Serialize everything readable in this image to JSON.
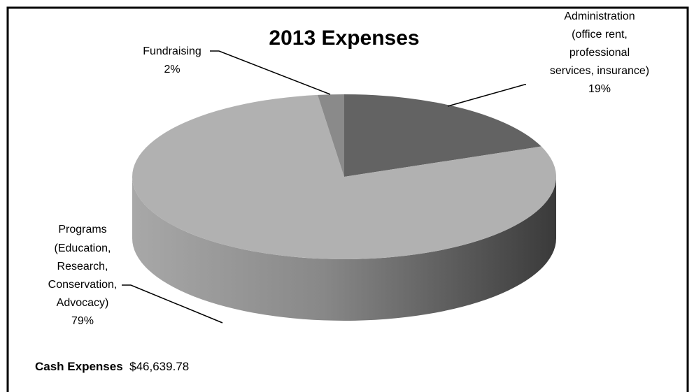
{
  "chart_data": {
    "type": "pie",
    "style": "3d",
    "title": "2013 Expenses",
    "slices": [
      {
        "name": "Administration",
        "label_lines": [
          "Administration",
          "(office rent,",
          "professional",
          "services, insurance)"
        ],
        "value": 19,
        "value_label": "19%",
        "color": "#636363"
      },
      {
        "name": "Programs",
        "label_lines": [
          "Programs",
          "(Education,",
          "Research,",
          "Conservation,",
          "Advocacy)"
        ],
        "value": 79,
        "value_label": "79%",
        "color": "#b1b1b1"
      },
      {
        "name": "Fundraising",
        "label_lines": [
          "Fundraising"
        ],
        "value": 2,
        "value_label": "2%",
        "color": "#8a8a8a"
      }
    ]
  },
  "footer": {
    "label": "Cash Expenses",
    "amount": "$46,639.78"
  },
  "colors": {
    "side_light": "#a8a8a8",
    "side_dark": "#3c3c3c",
    "border": "#000000",
    "background": "#ffffff"
  }
}
